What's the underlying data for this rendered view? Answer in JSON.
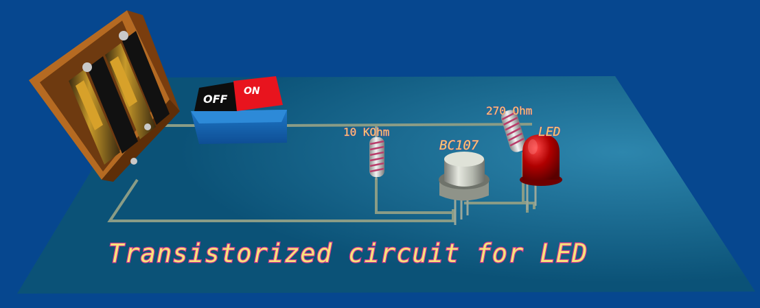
{
  "scene": {
    "title": "Transistorized circuit for LED",
    "colors": {
      "background": "#06478f",
      "board": "#0d5a7e",
      "wire": "#8a9c86",
      "label_fill": "#f3d36b",
      "label_stroke": "#c0389a"
    }
  },
  "components": {
    "battery_holder": {
      "icon": "battery-pack-icon"
    },
    "switch": {
      "off_label": "OFF",
      "on_label": "ON",
      "on_color": "#e8141e",
      "off_color": "#111111"
    },
    "resistor_base": {
      "label": "10 KOhm"
    },
    "resistor_led": {
      "label": "270 Ohm"
    },
    "transistor": {
      "label": "BC107"
    },
    "led": {
      "label": "LED",
      "color": "#b00000"
    }
  }
}
